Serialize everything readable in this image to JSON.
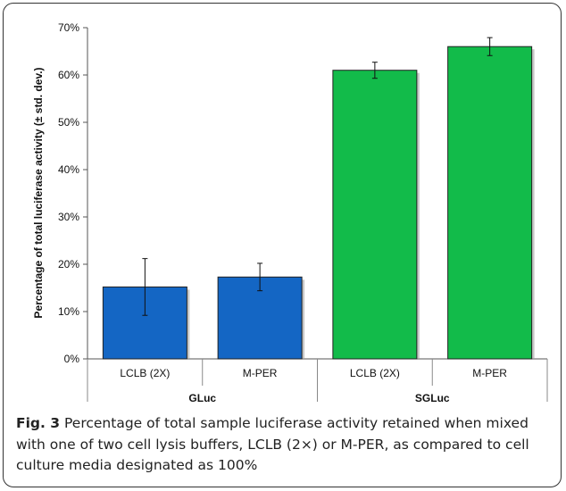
{
  "chart_data": {
    "type": "bar",
    "ylabel": "Percentage of total luciferase activity (± std. dev.)",
    "xlabel": "",
    "ylim": [
      0,
      70
    ],
    "y_ticks": [
      0,
      10,
      20,
      30,
      40,
      50,
      60,
      70
    ],
    "y_tick_labels": [
      "0%",
      "10%",
      "20%",
      "30%",
      "40%",
      "50%",
      "60%",
      "70%"
    ],
    "grid": false,
    "legend": "none",
    "groups": [
      {
        "label": "GLuc",
        "color": "#1466c4",
        "bars": [
          {
            "category": "LCLB (2X)",
            "value": 15.2,
            "error": 6.0
          },
          {
            "category": "M-PER",
            "value": 17.3,
            "error": 2.9
          }
        ]
      },
      {
        "label": "SGLuc",
        "color": "#12bb4a",
        "bars": [
          {
            "category": "LCLB (2X)",
            "value": 61.0,
            "error": 1.7
          },
          {
            "category": "M-PER",
            "value": 66.0,
            "error": 1.9
          }
        ]
      }
    ]
  },
  "caption": {
    "label": "Fig. 3",
    "text": " Percentage of total sample luciferase activity retained when mixed with one of two cell lysis buffers, LCLB (2×) or M-PER, as compared to cell culture media designated as 100%"
  }
}
